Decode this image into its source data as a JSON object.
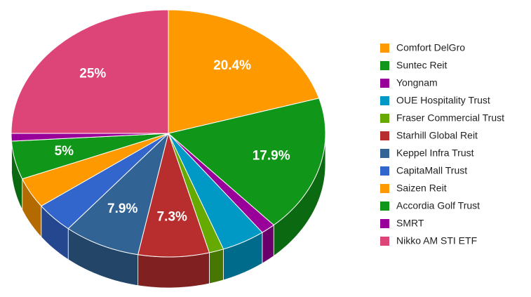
{
  "chart_data": {
    "type": "pie",
    "categories": [
      "Comfort DelGro",
      "Suntec Reit",
      "Yongnam",
      "OUE Hospitality Trust",
      "Fraser Commercial Trust",
      "Starhill Global Reit",
      "Keppel Infra Trust",
      "CapitaMall Trust",
      "Saizen Reit",
      "Accordia Golf Trust",
      "SMRT",
      "Nikko AM STI ETF"
    ],
    "values": [
      20.4,
      17.9,
      1.5,
      4.5,
      1.5,
      7.3,
      7.9,
      4,
      4,
      5,
      1,
      25
    ],
    "value_labels": [
      "20.4%",
      "17.9%",
      null,
      null,
      null,
      "7.3%",
      "7.9%",
      null,
      null,
      "5%",
      null,
      "25%"
    ],
    "colors": [
      "#ff9900",
      "#109618",
      "#990099",
      "#0099c6",
      "#66aa00",
      "#b82e2e",
      "#316395",
      "#3366cc",
      "#ff9900",
      "#109618",
      "#990099",
      "#dd4477"
    ],
    "legend": "right"
  }
}
